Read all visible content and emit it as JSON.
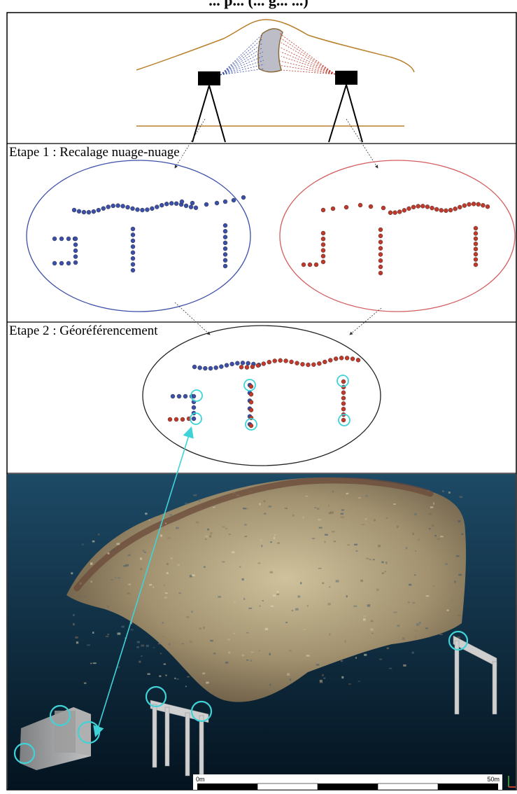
{
  "header": {
    "title": "... p... (... g... ...)"
  },
  "steps": {
    "step1": "Etape 1 : Recalage nuage-nuage",
    "step2": "Etape 2 : Géoréférencement"
  },
  "colors": {
    "blue_scan": "#3b4fa8",
    "red_scan": "#c0392b",
    "target_circle": "#3fd3d8",
    "terrain_line": "#b8802b",
    "point_cloud_bg": "#0e2d45"
  },
  "scale_bar": {
    "start_label": "0m",
    "end_label": "50m"
  },
  "icons": [
    "scanner-icon",
    "tripod-icon",
    "axis-gizmo-icon"
  ]
}
